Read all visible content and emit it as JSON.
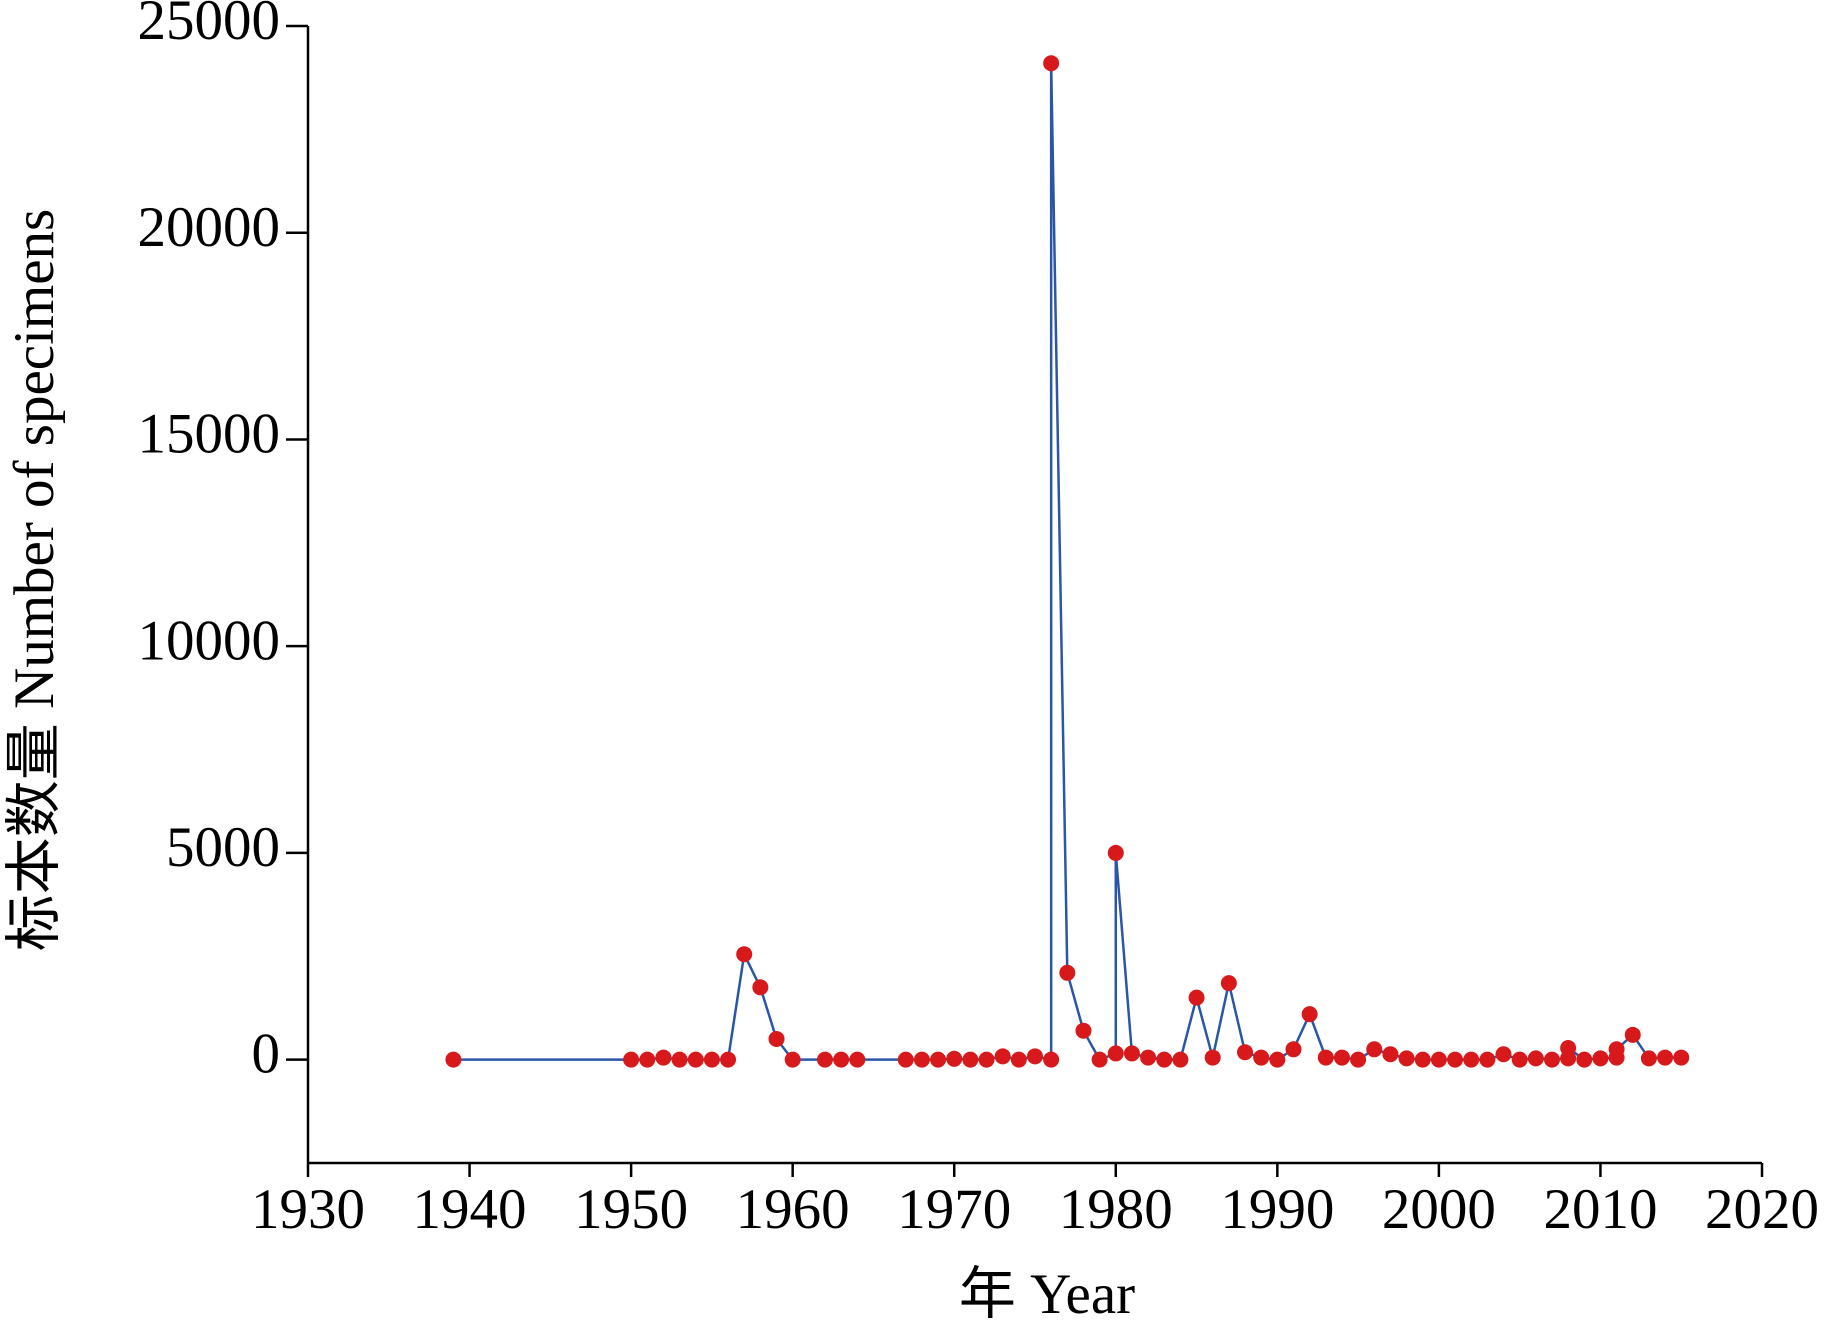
{
  "chart_data": {
    "type": "line",
    "xlabel": "年 Year",
    "ylabel": "标本数量 Number of specimens",
    "x": [
      1939,
      1950,
      1951,
      1952,
      1953,
      1954,
      1955,
      1956,
      1957,
      1958,
      1959,
      1960,
      1962,
      1963,
      1964,
      1967,
      1968,
      1969,
      1970,
      1971,
      1972,
      1973,
      1974,
      1975,
      1976,
      1976,
      1977,
      1978,
      1979,
      1980,
      1980,
      1981,
      1982,
      1983,
      1984,
      1985,
      1986,
      1987,
      1988,
      1989,
      1990,
      1991,
      1992,
      1993,
      1994,
      1995,
      1996,
      1997,
      1998,
      1999,
      2000,
      2001,
      2002,
      2003,
      2004,
      2005,
      2006,
      2007,
      2008,
      2008,
      2009,
      2010,
      2011,
      2011,
      2012,
      2013,
      2014,
      2015
    ],
    "series": [
      {
        "name": "Specimens",
        "color": "#2a56a8",
        "marker_color": "#d7191c",
        "values": [
          0,
          0,
          0,
          50,
          0,
          0,
          0,
          0,
          2550,
          1750,
          500,
          0,
          0,
          0,
          0,
          0,
          0,
          0,
          20,
          0,
          0,
          80,
          0,
          80,
          0,
          24100,
          2100,
          700,
          0,
          150,
          5000,
          150,
          50,
          0,
          0,
          1500,
          50,
          1850,
          180,
          50,
          0,
          250,
          1100,
          50,
          50,
          0,
          250,
          130,
          30,
          0,
          0,
          0,
          0,
          0,
          130,
          0,
          30,
          0,
          30,
          280,
          0,
          30,
          50,
          250,
          600,
          30,
          50,
          50
        ]
      }
    ],
    "xlim": [
      1930,
      2020
    ],
    "xticks": [
      1930,
      1940,
      1950,
      1960,
      1970,
      1980,
      1990,
      2000,
      2010,
      2020
    ],
    "ylim": [
      -2500,
      25000
    ],
    "yticks": [
      0,
      5000,
      10000,
      15000,
      20000,
      25000
    ]
  }
}
